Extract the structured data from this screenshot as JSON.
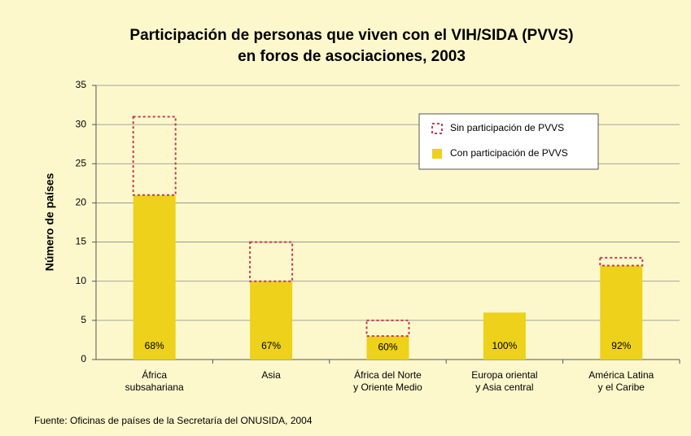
{
  "chart_data": {
    "type": "stacked_bar",
    "title": [
      "Participación de personas que viven con el VIH/SIDA (PVVS)",
      "en foros de asociaciones, 2003"
    ],
    "y_label": "Número de países",
    "categories": [
      [
        "África",
        "subsahariana"
      ],
      [
        "Asia"
      ],
      [
        "África del Norte",
        "y Oriente Medio"
      ],
      [
        "Europa oriental",
        "y Asia central"
      ],
      [
        "América Latina",
        "y el Caribe"
      ]
    ],
    "series": [
      {
        "name": "Con participación de PVVS",
        "color": "#edd11a",
        "style": "filled",
        "values": [
          21,
          10,
          3,
          6,
          12
        ],
        "labels": [
          "68%",
          "67%",
          "60%",
          "100%",
          "92%"
        ]
      },
      {
        "name": "Sin participación de PVVS",
        "color": "#c23b55",
        "style": "dashed",
        "values": [
          10,
          5,
          2,
          0,
          1
        ]
      }
    ],
    "ylim": [
      0,
      35
    ],
    "yticks": [
      0,
      5,
      10,
      15,
      20,
      25,
      30,
      35
    ],
    "grid": true,
    "source": "Fuente: Oficinas de países de la Secretaría del ONUSIDA, 2004"
  }
}
